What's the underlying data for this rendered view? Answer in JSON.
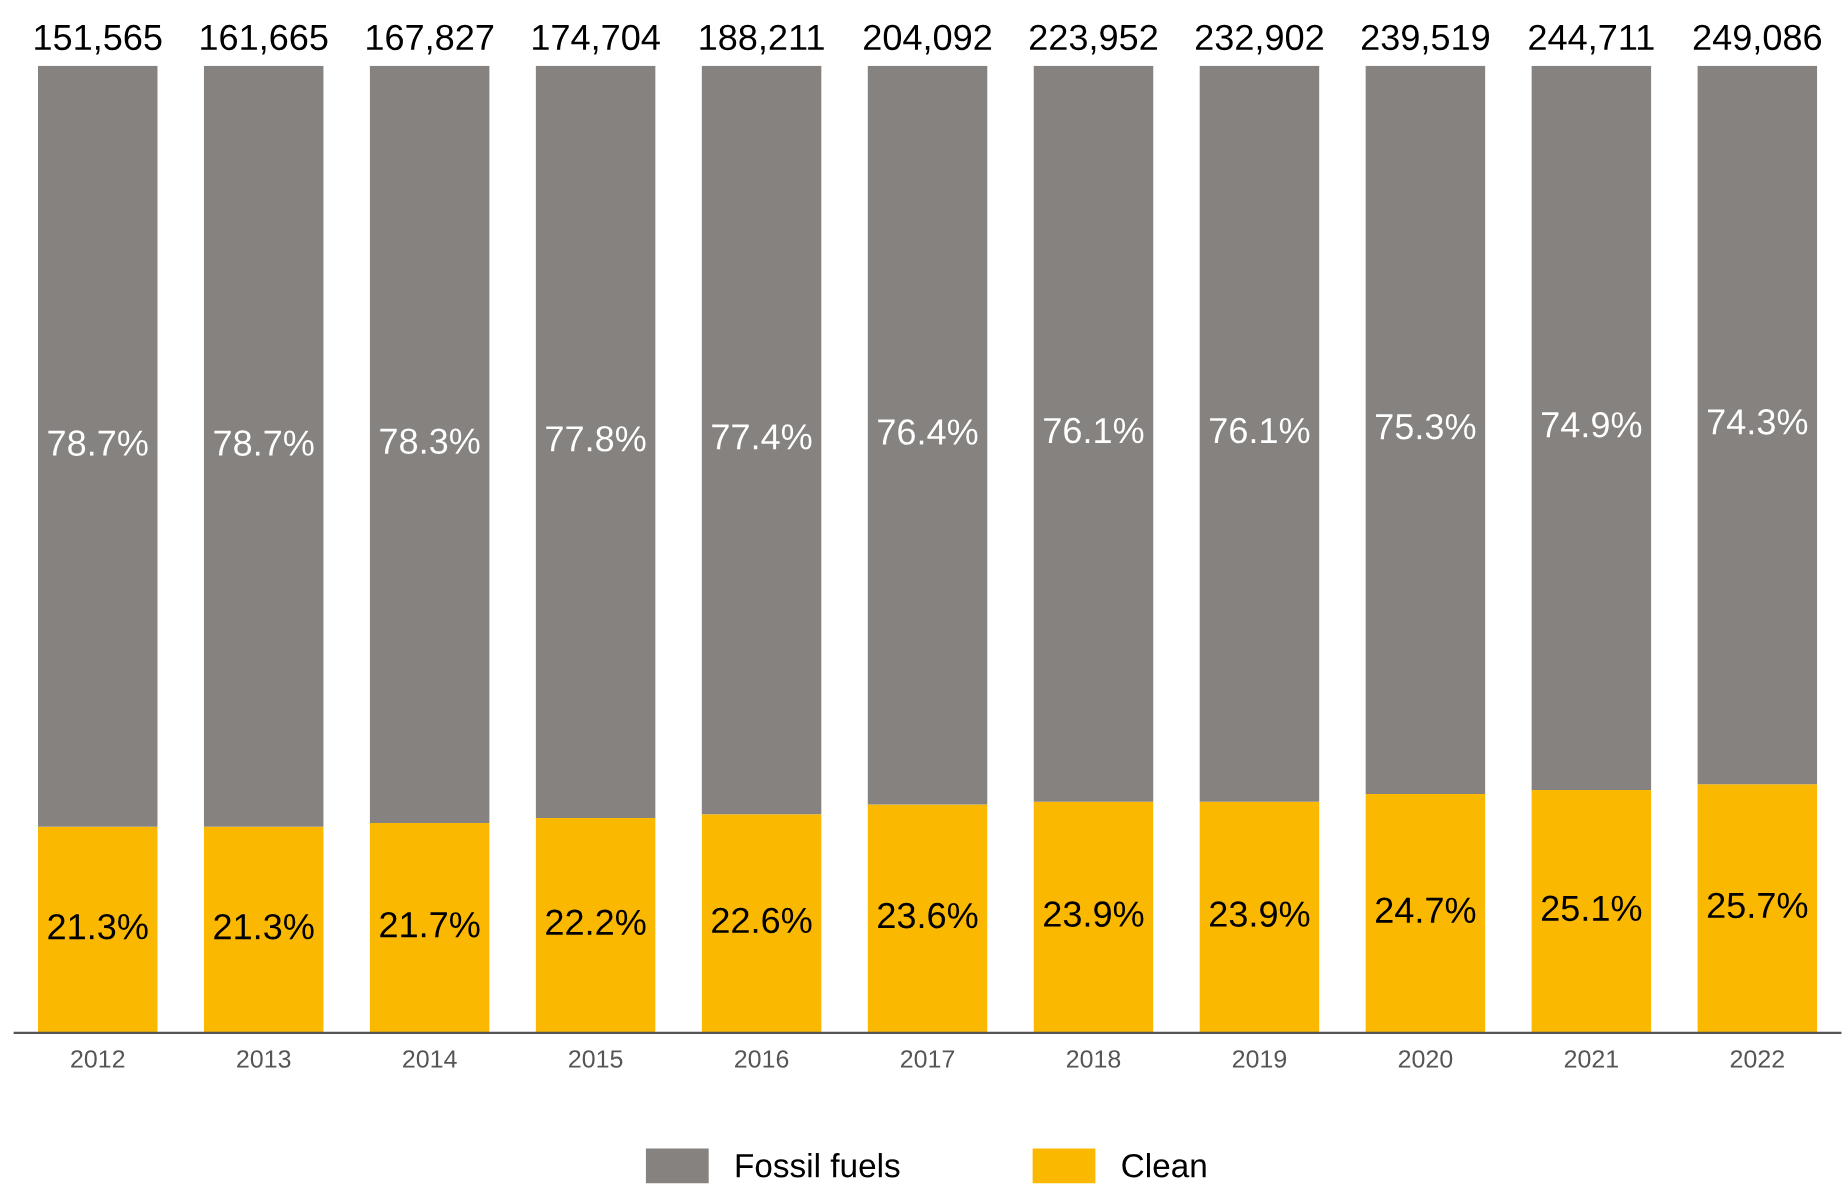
{
  "chart_data": {
    "type": "bar",
    "stacked": true,
    "legend": "bottom",
    "categories": [
      "2012",
      "2013",
      "2014",
      "2015",
      "2016",
      "2017",
      "2018",
      "2019",
      "2020",
      "2021",
      "2022"
    ],
    "series": [
      {
        "name": "Clean",
        "color": "#fbb800",
        "values": [
          21.3,
          21.3,
          21.7,
          22.2,
          22.6,
          23.6,
          23.9,
          23.9,
          24.7,
          25.1,
          25.7
        ],
        "value_labels": [
          "21.3%",
          "21.3%",
          "21.7%",
          "22.2%",
          "22.6%",
          "23.6%",
          "23.9%",
          "23.9%",
          "24.7%",
          "25.1%",
          "25.7%"
        ]
      },
      {
        "name": "Fossil fuels",
        "color": "#868280",
        "values": [
          78.7,
          78.7,
          78.3,
          77.8,
          77.4,
          76.4,
          76.1,
          76.1,
          75.3,
          74.9,
          74.3
        ],
        "value_labels": [
          "78.7%",
          "78.7%",
          "78.3%",
          "77.8%",
          "77.4%",
          "76.4%",
          "76.1%",
          "76.1%",
          "75.3%",
          "74.9%",
          "74.3%"
        ]
      }
    ],
    "annotations": [
      {
        "text": "151,565",
        "x": "2012",
        "y": 100
      },
      {
        "text": "161,665",
        "x": "2013",
        "y": 100
      },
      {
        "text": "167,827",
        "x": "2014",
        "y": 100
      },
      {
        "text": "174,704",
        "x": "2015",
        "y": 100
      },
      {
        "text": "188,211",
        "x": "2016",
        "y": 100
      },
      {
        "text": "204,092",
        "x": "2017",
        "y": 100
      },
      {
        "text": "223,952",
        "x": "2018",
        "y": 100
      },
      {
        "text": "232,902",
        "x": "2019",
        "y": 100
      },
      {
        "text": "239,519",
        "x": "2020",
        "y": 100
      },
      {
        "text": "244,711",
        "x": "2021",
        "y": 100
      },
      {
        "text": "249,086",
        "x": "2022",
        "y": 100
      }
    ]
  }
}
